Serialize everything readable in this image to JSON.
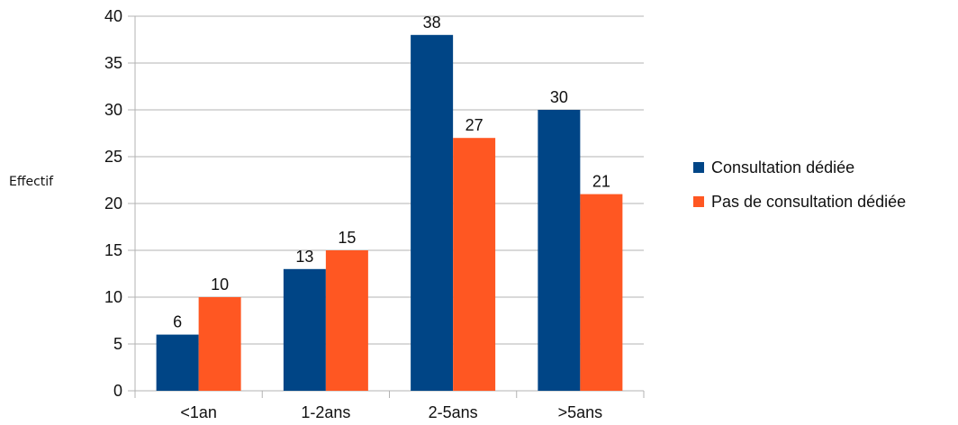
{
  "chart_data": {
    "type": "bar",
    "categories": [
      "<1an",
      "1-2ans",
      "2-5ans",
      ">5ans"
    ],
    "series": [
      {
        "name": "Consultation dédiée",
        "values": [
          6,
          13,
          38,
          30
        ],
        "color": "#004586"
      },
      {
        "name": "Pas de consultation dédiée",
        "values": [
          10,
          15,
          27,
          21
        ],
        "color": "#ff5722"
      }
    ],
    "title": "",
    "xlabel": "",
    "ylabel": "Effectif",
    "ylim": [
      0,
      40
    ],
    "yticks": [
      0,
      5,
      10,
      15,
      20,
      25,
      30,
      35,
      40
    ],
    "grid": true,
    "legend_position": "right",
    "data_labels": true
  }
}
